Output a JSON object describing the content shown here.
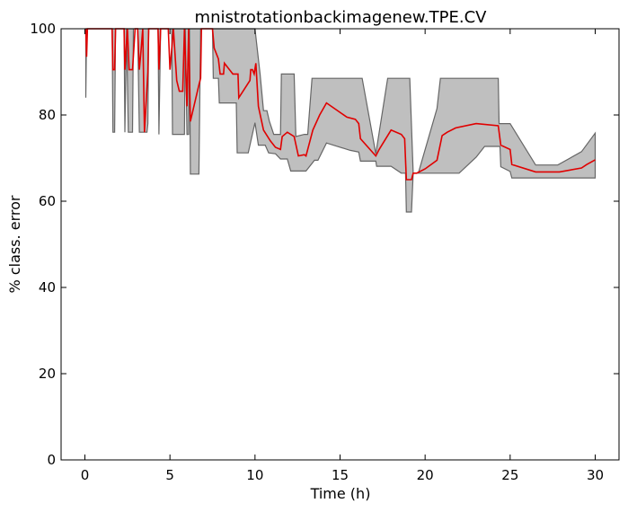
{
  "chart_data": {
    "type": "line",
    "title": "mnistrotationbackimagenew.TPE.CV",
    "xlabel": "Time (h)",
    "ylabel": "% class. error",
    "xlim": [
      -1.4,
      31.4
    ],
    "ylim": [
      0,
      100
    ],
    "xticks": [
      0,
      5,
      10,
      15,
      20,
      25,
      30
    ],
    "yticks": [
      0,
      20,
      40,
      60,
      80,
      100
    ],
    "grid": false,
    "colors": {
      "line": "#e00000",
      "band_fill": "#bfbfbf",
      "band_edge": "#666666"
    },
    "series": [
      {
        "role": "mean",
        "points": [
          [
            0.05,
            100
          ],
          [
            0.1,
            93.5
          ],
          [
            0.15,
            100
          ],
          [
            1.6,
            100
          ],
          [
            1.65,
            90.5
          ],
          [
            1.75,
            90.5
          ],
          [
            1.8,
            100
          ],
          [
            2.3,
            100
          ],
          [
            2.35,
            90.5
          ],
          [
            2.5,
            100
          ],
          [
            2.6,
            90.5
          ],
          [
            2.8,
            90.5
          ],
          [
            2.95,
            100
          ],
          [
            3.1,
            100
          ],
          [
            3.2,
            90.5
          ],
          [
            3.3,
            95
          ],
          [
            3.4,
            100
          ],
          [
            3.5,
            76
          ],
          [
            3.7,
            90
          ],
          [
            3.75,
            100
          ],
          [
            4.3,
            100
          ],
          [
            4.35,
            90.5
          ],
          [
            4.45,
            100
          ],
          [
            4.9,
            100
          ],
          [
            5.0,
            90.5
          ],
          [
            5.2,
            100
          ],
          [
            5.4,
            88
          ],
          [
            5.55,
            85.5
          ],
          [
            5.75,
            85.5
          ],
          [
            5.85,
            100
          ],
          [
            6.0,
            82
          ],
          [
            6.1,
            100
          ],
          [
            6.2,
            78.5
          ],
          [
            6.7,
            87
          ],
          [
            6.8,
            88.5
          ],
          [
            6.85,
            100
          ],
          [
            7.5,
            100
          ],
          [
            7.6,
            95.5
          ],
          [
            7.85,
            93
          ],
          [
            7.95,
            89.5
          ],
          [
            8.15,
            89.5
          ],
          [
            8.2,
            92
          ],
          [
            8.7,
            89.5
          ],
          [
            9.0,
            89.5
          ],
          [
            9.05,
            84
          ],
          [
            9.7,
            88
          ],
          [
            9.75,
            90.5
          ],
          [
            9.85,
            90.5
          ],
          [
            9.95,
            89.5
          ],
          [
            10.05,
            92
          ],
          [
            10.2,
            82
          ],
          [
            10.5,
            76.5
          ],
          [
            10.9,
            74
          ],
          [
            11.2,
            72.5
          ],
          [
            11.5,
            72
          ],
          [
            11.6,
            75
          ],
          [
            11.9,
            76
          ],
          [
            12.3,
            75
          ],
          [
            12.55,
            70.5
          ],
          [
            12.9,
            70.8
          ],
          [
            13.0,
            70.5
          ],
          [
            13.1,
            72
          ],
          [
            13.4,
            76.5
          ],
          [
            13.8,
            80
          ],
          [
            14.2,
            82.8
          ],
          [
            15.4,
            79.5
          ],
          [
            15.9,
            79
          ],
          [
            16.1,
            78
          ],
          [
            16.2,
            74.5
          ],
          [
            17.1,
            70.5
          ],
          [
            17.3,
            72
          ],
          [
            18.0,
            76.5
          ],
          [
            18.6,
            75.5
          ],
          [
            18.8,
            74.5
          ],
          [
            18.9,
            65
          ],
          [
            19.2,
            65
          ],
          [
            19.3,
            66.5
          ],
          [
            19.5,
            66.5
          ],
          [
            20.0,
            67.5
          ],
          [
            20.7,
            69.5
          ],
          [
            21.0,
            75.2
          ],
          [
            21.3,
            76
          ],
          [
            21.8,
            77
          ],
          [
            23.0,
            78
          ],
          [
            24.3,
            77.5
          ],
          [
            24.45,
            73
          ],
          [
            25.0,
            72
          ],
          [
            25.1,
            68.5
          ],
          [
            26.5,
            66.8
          ],
          [
            27.9,
            66.8
          ],
          [
            29.2,
            67.7
          ],
          [
            29.5,
            68.5
          ],
          [
            30.0,
            69.6
          ]
        ]
      },
      {
        "role": "upper",
        "points": [
          [
            0.05,
            100
          ],
          [
            7.5,
            100
          ],
          [
            10.0,
            100
          ],
          [
            10.3,
            89.5
          ],
          [
            10.5,
            81
          ],
          [
            10.7,
            81
          ],
          [
            10.85,
            78.5
          ],
          [
            11.1,
            75.5
          ],
          [
            11.5,
            75.5
          ],
          [
            11.55,
            89.5
          ],
          [
            12.3,
            89.5
          ],
          [
            12.4,
            75
          ],
          [
            12.9,
            75.5
          ],
          [
            13.1,
            75.5
          ],
          [
            13.35,
            88.5
          ],
          [
            16.3,
            88.5
          ],
          [
            17.1,
            71
          ],
          [
            17.8,
            88.5
          ],
          [
            19.1,
            88.5
          ],
          [
            19.3,
            66.5
          ],
          [
            19.6,
            66.5
          ],
          [
            20.7,
            81.5
          ],
          [
            20.9,
            88.5
          ],
          [
            24.3,
            88.5
          ],
          [
            24.35,
            78
          ],
          [
            25.0,
            78
          ],
          [
            26.5,
            68.4
          ],
          [
            27.8,
            68.4
          ],
          [
            29.2,
            71.5
          ],
          [
            30.0,
            75.8
          ]
        ]
      },
      {
        "role": "lower",
        "points": [
          [
            0.05,
            84
          ],
          [
            0.1,
            100
          ],
          [
            1.6,
            100
          ],
          [
            1.65,
            76
          ],
          [
            1.75,
            76
          ],
          [
            1.8,
            100
          ],
          [
            2.3,
            100
          ],
          [
            2.35,
            76
          ],
          [
            2.45,
            100
          ],
          [
            2.55,
            76
          ],
          [
            2.8,
            76
          ],
          [
            2.85,
            100
          ],
          [
            3.1,
            100
          ],
          [
            3.2,
            76
          ],
          [
            3.65,
            76
          ],
          [
            3.7,
            78
          ],
          [
            3.75,
            100
          ],
          [
            4.3,
            100
          ],
          [
            4.35,
            75.5
          ],
          [
            4.45,
            100
          ],
          [
            5.1,
            100
          ],
          [
            5.15,
            75.5
          ],
          [
            5.85,
            75.5
          ],
          [
            5.9,
            100
          ],
          [
            6.0,
            75.5
          ],
          [
            6.1,
            75.5
          ],
          [
            6.15,
            100
          ],
          [
            6.2,
            66.3
          ],
          [
            6.7,
            66.3
          ],
          [
            6.8,
            100
          ],
          [
            7.5,
            100
          ],
          [
            7.55,
            88.5
          ],
          [
            7.85,
            88.5
          ],
          [
            7.9,
            82.8
          ],
          [
            8.9,
            82.8
          ],
          [
            8.95,
            71.2
          ],
          [
            9.6,
            71.2
          ],
          [
            10.0,
            78.2
          ],
          [
            10.2,
            73
          ],
          [
            10.6,
            73
          ],
          [
            10.8,
            71.2
          ],
          [
            11.2,
            71
          ],
          [
            11.5,
            69.8
          ],
          [
            11.9,
            69.8
          ],
          [
            12.1,
            67
          ],
          [
            13.0,
            67
          ],
          [
            13.5,
            69.5
          ],
          [
            13.7,
            69.5
          ],
          [
            14.2,
            73.5
          ],
          [
            15.6,
            71.8
          ],
          [
            16.1,
            71.4
          ],
          [
            16.2,
            69.3
          ],
          [
            17.1,
            69.3
          ],
          [
            17.15,
            68.1
          ],
          [
            18.0,
            68.1
          ],
          [
            18.6,
            66.5
          ],
          [
            18.85,
            66.5
          ],
          [
            18.9,
            57.5
          ],
          [
            19.2,
            57.5
          ],
          [
            19.3,
            66.5
          ],
          [
            22.0,
            66.5
          ],
          [
            23.0,
            70.2
          ],
          [
            23.5,
            72.7
          ],
          [
            24.4,
            72.7
          ],
          [
            24.45,
            68
          ],
          [
            25.0,
            66.9
          ],
          [
            25.1,
            65.4
          ],
          [
            30.0,
            65.4
          ]
        ]
      }
    ]
  }
}
